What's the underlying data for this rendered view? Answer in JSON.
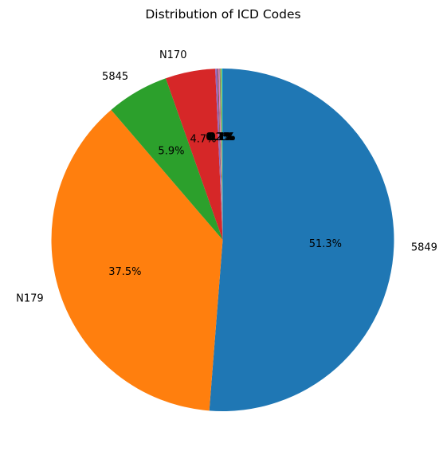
{
  "chart_data": {
    "type": "pie",
    "title": "Distribution of ICD Codes",
    "slices": [
      {
        "label": "5849",
        "value": 51.3,
        "pct_label": "51.3%",
        "color": "#1f77b4"
      },
      {
        "label": "N179",
        "value": 37.5,
        "pct_label": "37.5%",
        "color": "#ff7f0e"
      },
      {
        "label": "5845",
        "value": 5.9,
        "pct_label": "5.9%",
        "color": "#2ca02c"
      },
      {
        "label": "N170",
        "value": 4.7,
        "pct_label": "4.7%",
        "color": "#d62728"
      },
      {
        "label": "",
        "value": 0.2,
        "pct_label": "0.2%",
        "color": "#9467bd"
      },
      {
        "label": "",
        "value": 0.1,
        "pct_label": "0.1%",
        "color": "#8c564b"
      },
      {
        "label": "",
        "value": 0.1,
        "pct_label": "0.1%",
        "color": "#e377c2"
      },
      {
        "label": "",
        "value": 0.1,
        "pct_label": "0.1%",
        "color": "#7f7f7f"
      },
      {
        "label": "",
        "value": 0.1,
        "pct_label": "0.1%",
        "color": "#bcbd22"
      },
      {
        "label": "",
        "value": 0.1,
        "pct_label": "0.1%",
        "color": "#17becf"
      }
    ],
    "start_angle_deg": 90,
    "direction": "clockwise"
  }
}
